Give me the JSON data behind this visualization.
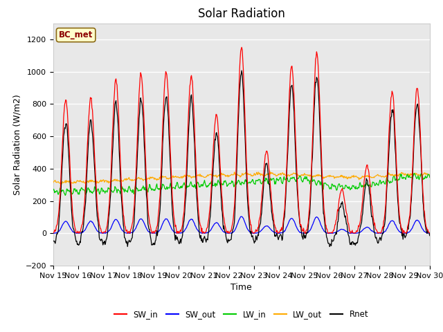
{
  "title": "Solar Radiation",
  "ylabel": "Solar Radiation (W/m2)",
  "xlabel": "Time",
  "ylim": [
    -200,
    1300
  ],
  "yticks": [
    -200,
    0,
    200,
    400,
    600,
    800,
    1000,
    1200
  ],
  "xtick_labels": [
    "Nov 15",
    "Nov 16",
    "Nov 17",
    "Nov 18",
    "Nov 19",
    "Nov 20",
    "Nov 21",
    "Nov 22",
    "Nov 23",
    "Nov 24",
    "Nov 25",
    "Nov 26",
    "Nov 27",
    "Nov 28",
    "Nov 29",
    "Nov 30"
  ],
  "legend_labels": [
    "SW_in",
    "SW_out",
    "LW_in",
    "LW_out",
    "Rnet"
  ],
  "line_colors": [
    "#ff0000",
    "#0000ff",
    "#00cc00",
    "#ffaa00",
    "#000000"
  ],
  "station_label": "BC_met",
  "sw_in_peaks": [
    830,
    835,
    950,
    985,
    1000,
    980,
    730,
    1150,
    510,
    1040,
    1120,
    270,
    420,
    880,
    900
  ],
  "lw_in_base": [
    255,
    260,
    265,
    270,
    275,
    290,
    300,
    310,
    320,
    330,
    340,
    290,
    285,
    310,
    350
  ],
  "lw_out_base": [
    315,
    318,
    322,
    330,
    340,
    350,
    355,
    360,
    365,
    365,
    360,
    350,
    345,
    355,
    365
  ],
  "title_fontsize": 12,
  "label_fontsize": 9,
  "tick_fontsize": 8
}
